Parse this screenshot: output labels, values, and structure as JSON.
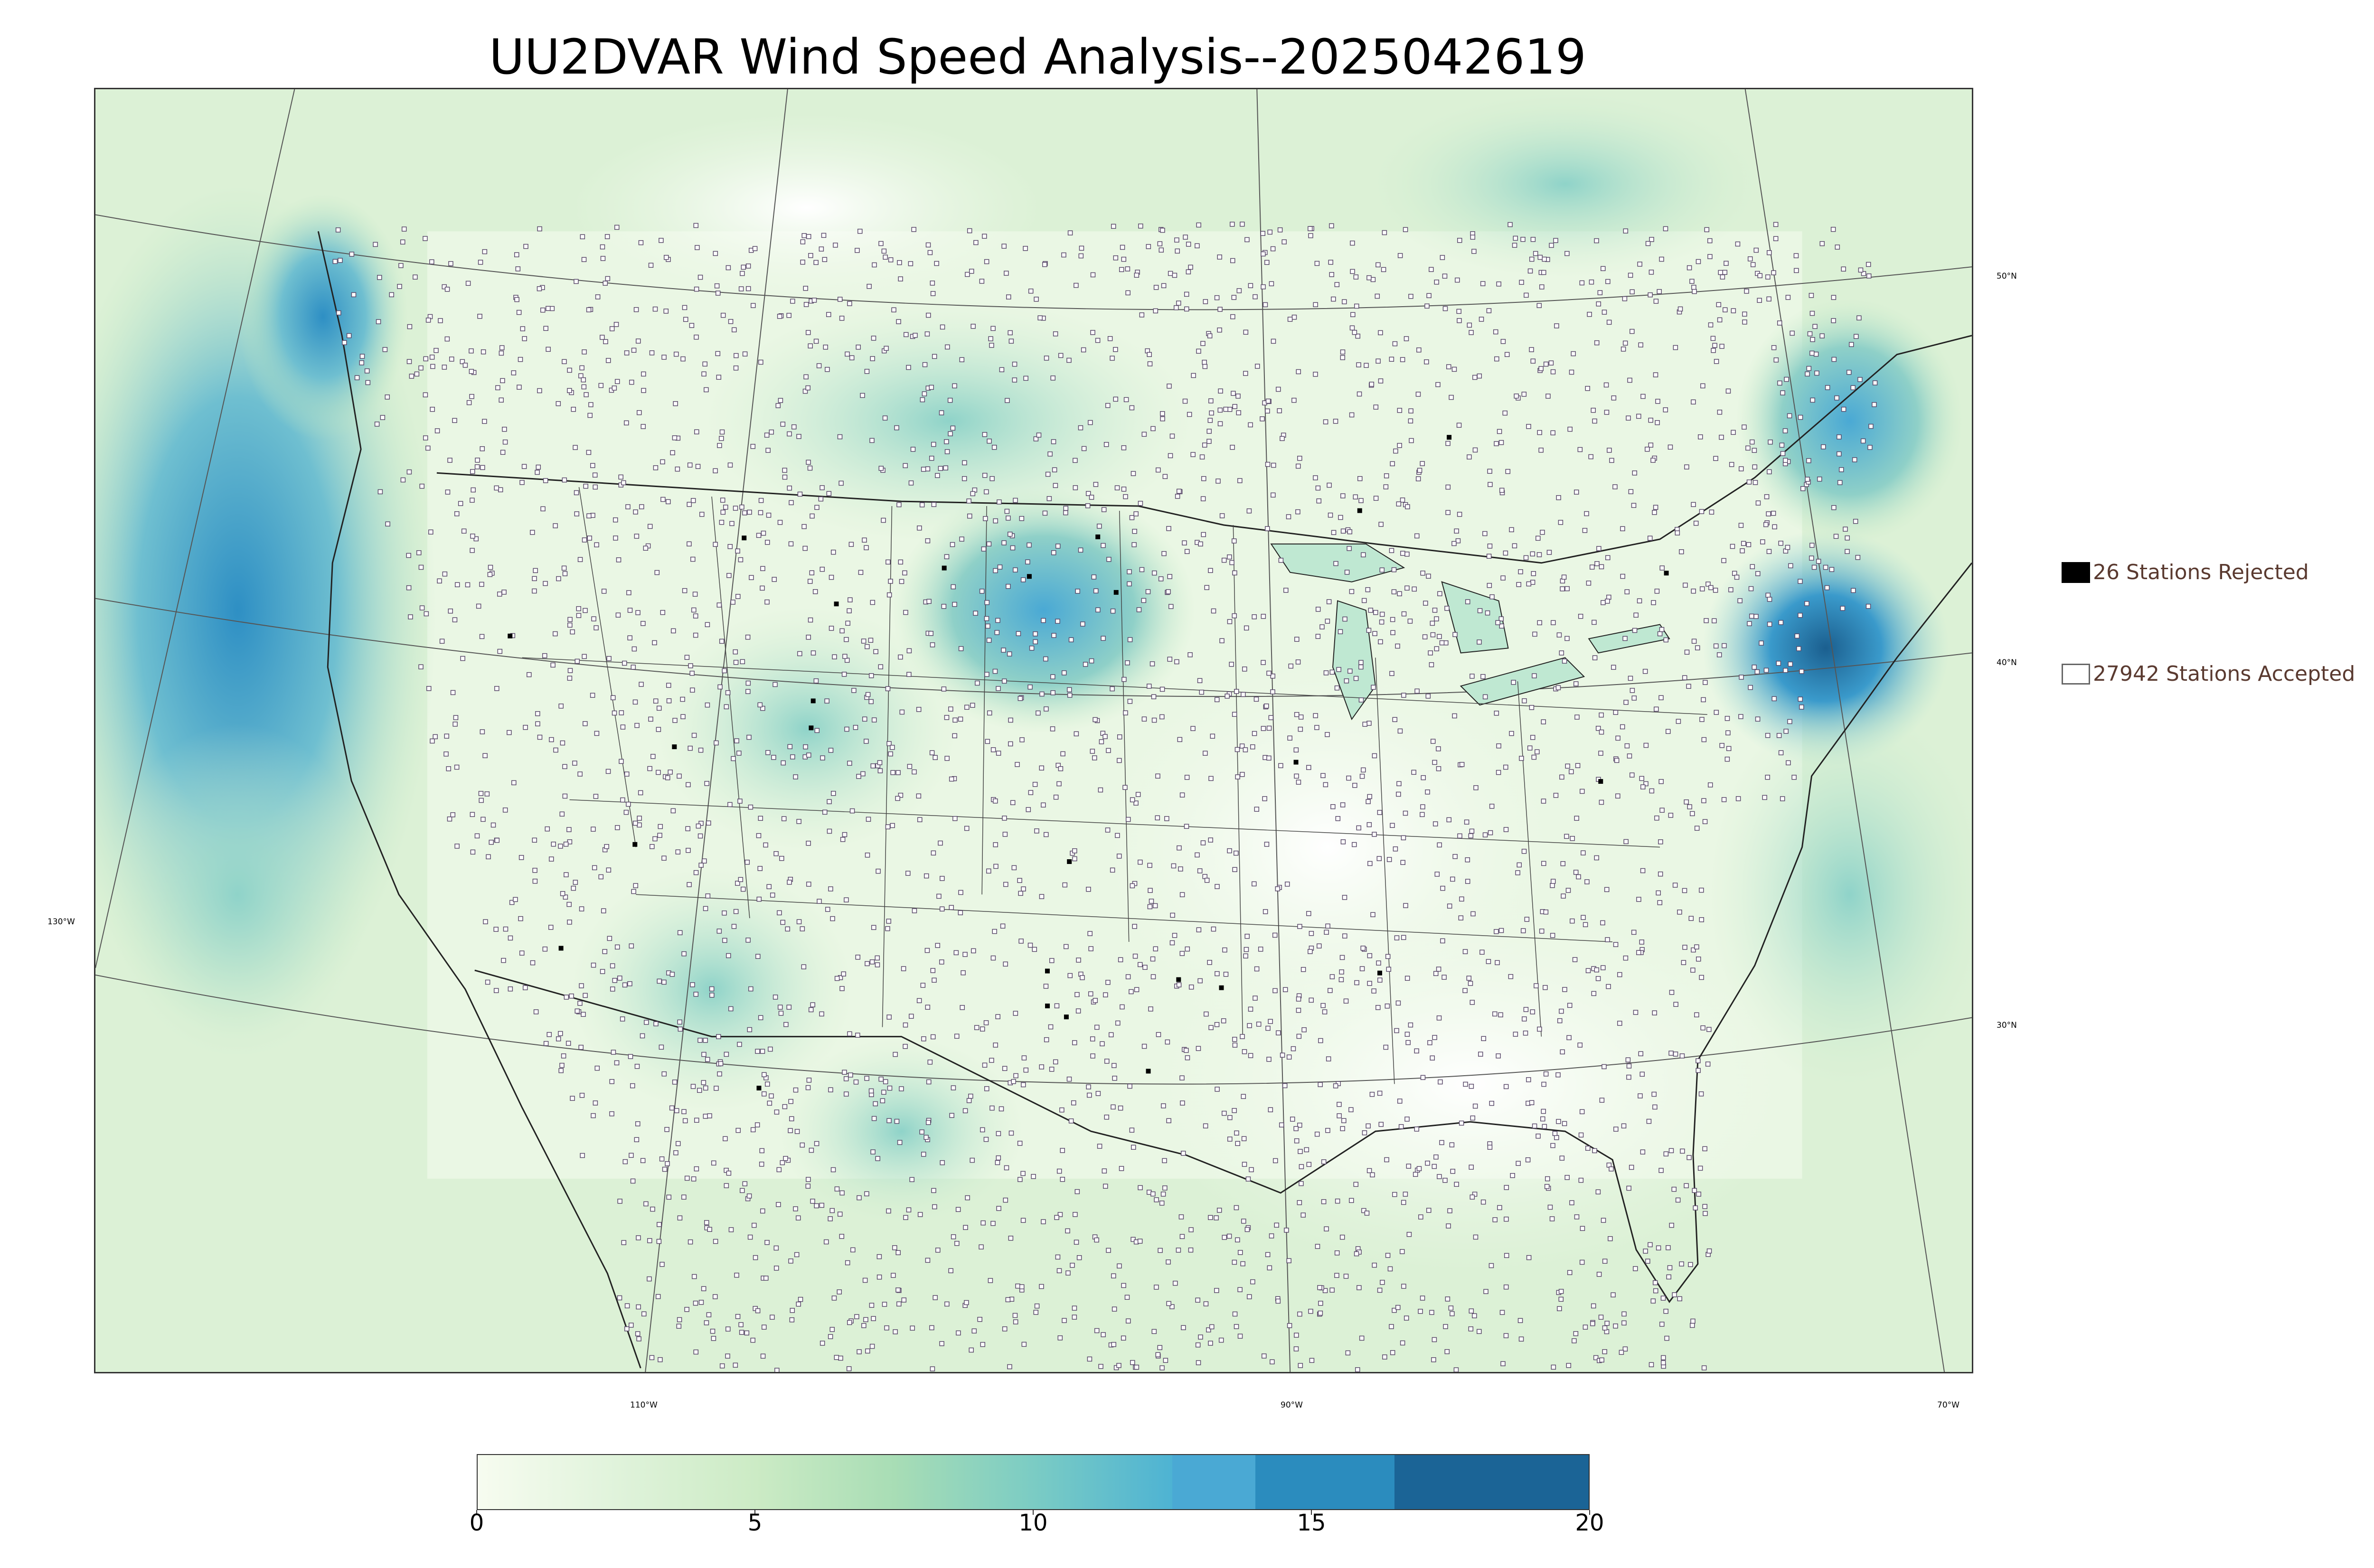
{
  "title": "UU2DVAR Wind Speed Analysis--2025042619",
  "map": {
    "projection": "lambert-conformal",
    "field": "wind speed",
    "colormap_colors": [
      "#f7fcf0",
      "#e0f3db",
      "#ccebc5",
      "#a8ddb5",
      "#7bccc4",
      "#4eb3d3",
      "#2b8cbe",
      "#1d6a9e"
    ],
    "latitude_labels": [
      "50°N",
      "40°N",
      "30°N"
    ],
    "longitude_labels": [
      "130°W",
      "110°W",
      "90°W",
      "70°W"
    ],
    "rejected_station_color": "#000000",
    "accepted_station_color": "#ffffff"
  },
  "legend": {
    "rejected_label": "26 Stations Rejected",
    "accepted_label": "27942 Stations Accepted"
  },
  "colorbar": {
    "min": 0,
    "max": 20,
    "ticks": [
      "0",
      "5",
      "10",
      "15",
      "20"
    ],
    "segments": [
      {
        "from": 0,
        "to": 12.5,
        "gradient": true
      },
      {
        "from": 12.5,
        "to": 14,
        "color": "#4aa9d4"
      },
      {
        "from": 14,
        "to": 16.5,
        "color": "#2b8cbe"
      },
      {
        "from": 16.5,
        "to": 20,
        "color": "#1b6496"
      }
    ]
  }
}
